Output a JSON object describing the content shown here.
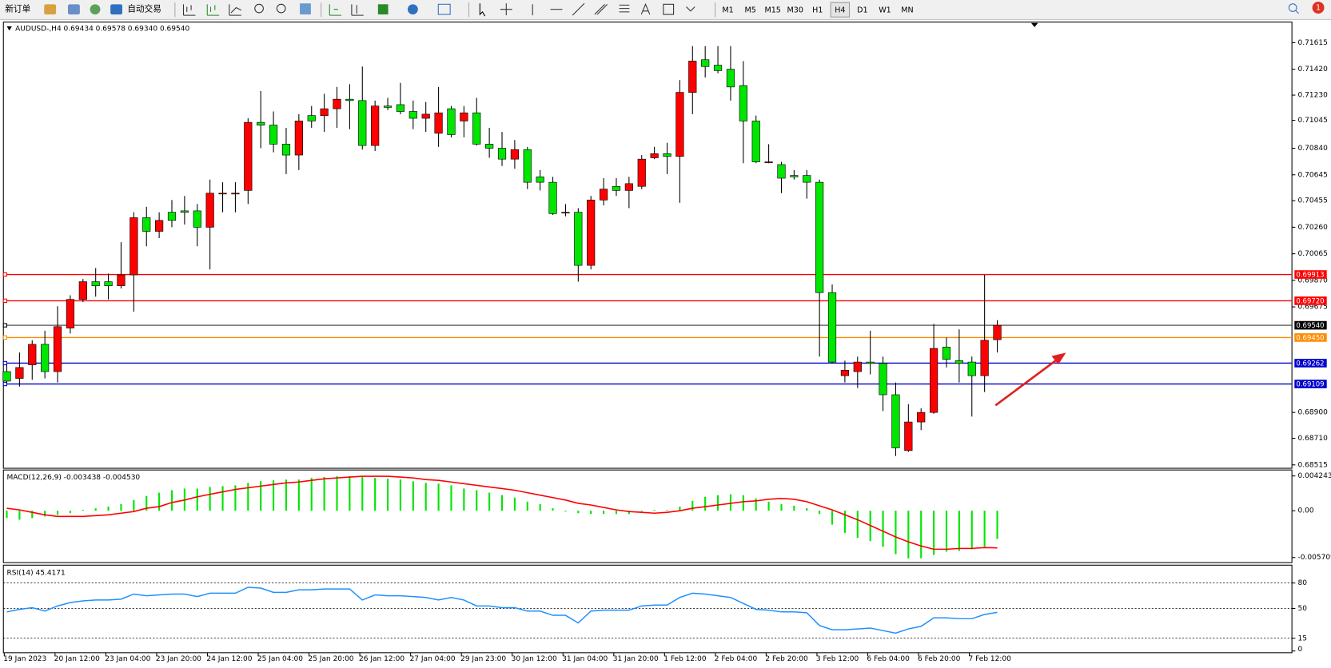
{
  "toolbar": {
    "buttons": [
      "新订单",
      "自动交易"
    ],
    "timeframes": [
      "M1",
      "M5",
      "M15",
      "M30",
      "H1",
      "H4",
      "D1",
      "W1",
      "MN"
    ],
    "active_timeframe": "H4",
    "notifications": 1
  },
  "chart_data": [
    {
      "type": "candlestick",
      "title": "AUDUSD-,H4  0.69434 0.69578 0.69340 0.69540",
      "categories": [
        "19 Jan 2023",
        null,
        null,
        null,
        "20 Jan 12:00",
        null,
        null,
        null,
        "23 Jan 04:00",
        null,
        null,
        null,
        "23 Jan 20:00",
        null,
        null,
        null,
        "24 Jan 12:00",
        null,
        null,
        null,
        "25 Jan 04:00",
        null,
        null,
        null,
        "25 Jan 20:00",
        null,
        null,
        null,
        "26 Jan 12:00",
        null,
        null,
        null,
        "27 Jan 04:00",
        null,
        null,
        null,
        "29 Jan 23:00",
        null,
        null,
        null,
        "30 Jan 12:00",
        null,
        null,
        null,
        "31 Jan 04:00",
        null,
        null,
        null,
        "31 Jan 20:00",
        null,
        null,
        null,
        "1 Feb 12:00",
        null,
        null,
        null,
        "2 Feb 04:00",
        null,
        null,
        null,
        "2 Feb 20:00",
        null,
        null,
        null,
        "3 Feb 12:00",
        null,
        null,
        null,
        "6 Feb 04:00",
        null,
        null,
        null,
        "6 Feb 20:00",
        null,
        null,
        null,
        "7 Feb 12:00",
        null,
        null
      ],
      "open": [
        0.692,
        0.6915,
        0.6925,
        0.694,
        0.692,
        0.6952,
        0.6973,
        0.6986,
        0.6986,
        0.6983,
        0.6991,
        0.7033,
        0.7023,
        0.7037,
        0.7038,
        0.7038,
        0.7026,
        0.7051,
        0.7051,
        0.7053,
        0.7103,
        0.7101,
        0.7087,
        0.7079,
        0.7108,
        0.7108,
        0.7113,
        0.712,
        0.7119,
        0.7086,
        0.7115,
        0.7116,
        0.7111,
        0.7106,
        0.7095,
        0.7113,
        0.7104,
        0.711,
        0.7087,
        0.7084,
        0.7076,
        0.7083,
        0.7063,
        0.7059,
        0.7037,
        0.7037,
        0.6998,
        0.7046,
        0.7056,
        0.7053,
        0.7056,
        0.7077,
        0.708,
        0.7078,
        0.7125,
        0.7149,
        0.7145,
        0.7142,
        0.713,
        0.7104,
        0.7074,
        0.7072,
        0.7064,
        0.7064,
        0.7059,
        0.6978,
        0.6917,
        0.692,
        0.6927,
        0.6926,
        0.6903,
        0.6862,
        0.6883,
        0.689,
        0.6938,
        0.6928,
        0.6927,
        0.6917,
        0.69434
      ],
      "high": [
        0.6925,
        0.6934,
        0.6943,
        0.695,
        0.6968,
        0.6976,
        0.6988,
        0.6996,
        0.6992,
        0.7015,
        0.7037,
        0.7041,
        0.7037,
        0.7046,
        0.7049,
        0.7043,
        0.7061,
        0.7059,
        0.7059,
        0.7106,
        0.7126,
        0.7111,
        0.7099,
        0.7109,
        0.7115,
        0.7124,
        0.7129,
        0.7131,
        0.7144,
        0.7119,
        0.7121,
        0.7132,
        0.7119,
        0.7118,
        0.7129,
        0.7115,
        0.7115,
        0.7121,
        0.7099,
        0.7096,
        0.709,
        0.7085,
        0.7068,
        0.7063,
        0.7043,
        0.704,
        0.7049,
        0.7062,
        0.7062,
        0.7063,
        0.7079,
        0.7085,
        0.7088,
        0.7134,
        0.7159,
        0.7159,
        0.7159,
        0.7159,
        0.7148,
        0.7108,
        0.7087,
        0.7074,
        0.7068,
        0.7068,
        0.7061,
        0.6984,
        0.6928,
        0.6931,
        0.695,
        0.6931,
        0.6912,
        0.6896,
        0.6893,
        0.6955,
        0.6945,
        0.6951,
        0.6931,
        0.6991,
        0.69578
      ],
      "low": [
        0.6911,
        0.6909,
        0.6914,
        0.6915,
        0.6912,
        0.6948,
        0.6971,
        0.6975,
        0.6973,
        0.6981,
        0.6964,
        0.7012,
        0.7018,
        0.7026,
        0.7028,
        0.7012,
        0.6995,
        0.7037,
        0.7037,
        0.7043,
        0.7084,
        0.7081,
        0.7065,
        0.7068,
        0.7099,
        0.7096,
        0.7099,
        0.7098,
        0.7083,
        0.7082,
        0.7112,
        0.7109,
        0.7098,
        0.7096,
        0.7085,
        0.7092,
        0.7092,
        0.7086,
        0.7077,
        0.7071,
        0.7069,
        0.7054,
        0.7053,
        0.7035,
        0.7034,
        0.6986,
        0.6995,
        0.7042,
        0.7049,
        0.704,
        0.7054,
        0.7076,
        0.7065,
        0.7044,
        0.7109,
        0.7136,
        0.7139,
        0.7119,
        0.7073,
        0.7073,
        0.7073,
        0.7051,
        0.7061,
        0.7047,
        0.6931,
        0.6926,
        0.6912,
        0.6908,
        0.6918,
        0.6891,
        0.6858,
        0.6861,
        0.6877,
        0.6889,
        0.6923,
        0.6912,
        0.6887,
        0.6905,
        0.6934
      ],
      "close": [
        0.6913,
        0.6923,
        0.694,
        0.692,
        0.6953,
        0.6973,
        0.6986,
        0.6983,
        0.6983,
        0.6991,
        0.7033,
        0.7023,
        0.7031,
        0.7031,
        0.7037,
        0.7026,
        0.7051,
        0.7051,
        0.7051,
        0.7103,
        0.7101,
        0.7087,
        0.7079,
        0.7104,
        0.7104,
        0.7113,
        0.712,
        0.7119,
        0.7086,
        0.7115,
        0.7114,
        0.7111,
        0.7106,
        0.7109,
        0.711,
        0.7094,
        0.711,
        0.7087,
        0.7084,
        0.7076,
        0.7083,
        0.7059,
        0.7059,
        0.7036,
        0.7037,
        0.6998,
        0.7046,
        0.7054,
        0.7053,
        0.7058,
        0.7076,
        0.708,
        0.7078,
        0.7125,
        0.7148,
        0.7144,
        0.7141,
        0.7129,
        0.7104,
        0.7074,
        0.7074,
        0.7062,
        0.7063,
        0.7059,
        0.6978,
        0.6927,
        0.6921,
        0.6927,
        0.6926,
        0.6903,
        0.6864,
        0.6883,
        0.689,
        0.6937,
        0.6929,
        0.6926,
        0.6917,
        0.6943,
        0.6954
      ],
      "up_color": "#ff0000",
      "down_color": "#00e600",
      "ylim": [
        0.6849,
        0.7176
      ],
      "yticks": [
        0.71615,
        {
          "value": 0.7142,
          "label": "0.71420"
        },
        {
          "value": 0.7123,
          "label": "0.71230"
        },
        0.71045,
        {
          "value": 0.7084,
          "label": "0.70840"
        },
        0.70645,
        0.70455,
        {
          "value": 0.7026,
          "label": "0.70260"
        },
        0.70065,
        {
          "value": 0.6987,
          "label": "0.69870"
        },
        0.69675,
        {
          "value": 0.689,
          "label": "0.68900"
        },
        {
          "value": 0.6871,
          "label": "0.68710"
        },
        0.68515
      ],
      "levels": [
        {
          "value": 0.69913,
          "color": "#ff0000"
        },
        {
          "value": 0.6972,
          "label": "0.69720",
          "color": "#ff0000"
        },
        {
          "value": 0.6954,
          "label": "0.69540",
          "color": "#000000"
        },
        {
          "value": 0.6945,
          "label": "0.69450",
          "color": "#ff8c00"
        },
        {
          "value": 0.69262,
          "color": "#0000cd"
        },
        {
          "value": 0.69109,
          "color": "#0000cd"
        }
      ]
    },
    {
      "type": "bar",
      "title": "MACD(12,26,9) -0.003438 -0.004530",
      "color": "#00e600",
      "values": [
        -0.0009,
        -0.0011,
        -0.0009,
        -0.0007,
        -0.0005,
        -0.0003,
        0.0001,
        0.0003,
        0.0005,
        0.0008,
        0.0013,
        0.0018,
        0.0022,
        0.0025,
        0.0027,
        0.0027,
        0.0029,
        0.003,
        0.0031,
        0.0034,
        0.0036,
        0.0037,
        0.0038,
        0.0038,
        0.004,
        0.0041,
        0.0042,
        0.0042,
        0.0041,
        0.004,
        0.0039,
        0.0038,
        0.0036,
        0.0034,
        0.0033,
        0.0031,
        0.0027,
        0.0025,
        0.0022,
        0.0019,
        0.0016,
        0.0011,
        0.0008,
        0.0003,
        -0.0001,
        -0.0003,
        -0.0004,
        -0.0004,
        -0.0004,
        -0.0004,
        -0.0001,
        0.0001,
        0.0001,
        0.0005,
        0.0012,
        0.0017,
        0.0019,
        0.002,
        0.0019,
        0.0015,
        0.0011,
        0.0008,
        0.0006,
        0.0003,
        -0.0004,
        -0.0017,
        -0.0027,
        -0.0033,
        -0.0037,
        -0.0044,
        -0.0053,
        -0.0058,
        -0.0058,
        -0.0054,
        -0.005,
        -0.0049,
        -0.0047,
        -0.0044,
        -0.003438
      ],
      "signal": {
        "color": "#ff0000",
        "values": [
          0.0003,
          0.0001,
          -0.0002,
          -0.0005,
          -0.0007,
          -0.0007,
          -0.0007,
          -0.0006,
          -0.0005,
          -0.0003,
          -0.0001,
          0.0003,
          0.0005,
          0.001,
          0.0013,
          0.0017,
          0.002,
          0.0023,
          0.0026,
          0.0028,
          0.003,
          0.0032,
          0.0034,
          0.0035,
          0.0037,
          0.0039,
          0.004,
          0.0041,
          0.0042,
          0.0042,
          0.0042,
          0.0041,
          0.004,
          0.0038,
          0.0037,
          0.0035,
          0.0033,
          0.0031,
          0.0029,
          0.0027,
          0.0025,
          0.0022,
          0.0019,
          0.0016,
          0.0013,
          0.0009,
          0.0007,
          0.0004,
          0.0001,
          -0.0001,
          -0.0002,
          -0.0003,
          -0.0002,
          0.0,
          0.0003,
          0.0005,
          0.0007,
          0.0009,
          0.0011,
          0.0012,
          0.0014,
          0.0015,
          0.0014,
          0.0011,
          0.0006,
          0.0001,
          -0.0005,
          -0.0011,
          -0.0018,
          -0.0025,
          -0.0032,
          -0.0038,
          -0.0043,
          -0.0047,
          -0.0047,
          -0.0046,
          -0.0046,
          -0.0045,
          -0.00453
        ]
      },
      "ylim": [
        -0.00633,
        0.00497
      ],
      "yticks": [
        0.004243,
        {
          "value": 0,
          "label": "0.00"
        },
        -0.005709
      ]
    },
    {
      "type": "line",
      "title": "RSI(14) 45.4171",
      "color": "#1e90ff",
      "values": [
        46,
        49,
        51,
        47,
        53,
        57,
        59,
        60,
        60,
        61,
        67,
        65,
        66,
        67,
        67,
        64,
        68,
        68,
        68,
        75,
        74,
        69,
        69,
        72,
        72,
        73,
        73,
        73,
        60,
        66,
        65,
        65,
        64,
        63,
        60,
        63,
        60,
        53,
        53,
        51,
        51,
        47,
        47,
        42,
        42,
        33,
        47,
        48,
        48,
        48,
        53,
        54,
        54,
        63,
        68,
        67,
        65,
        63,
        56,
        49,
        48,
        46,
        46,
        45,
        30,
        25,
        25,
        26,
        27,
        24,
        21,
        26,
        29,
        39,
        39,
        38,
        38,
        43,
        45.4171
      ],
      "ylim": [
        0,
        100
      ],
      "yticks": [
        80,
        50,
        15,
        0
      ],
      "levels": [
        80,
        50,
        15
      ]
    }
  ]
}
